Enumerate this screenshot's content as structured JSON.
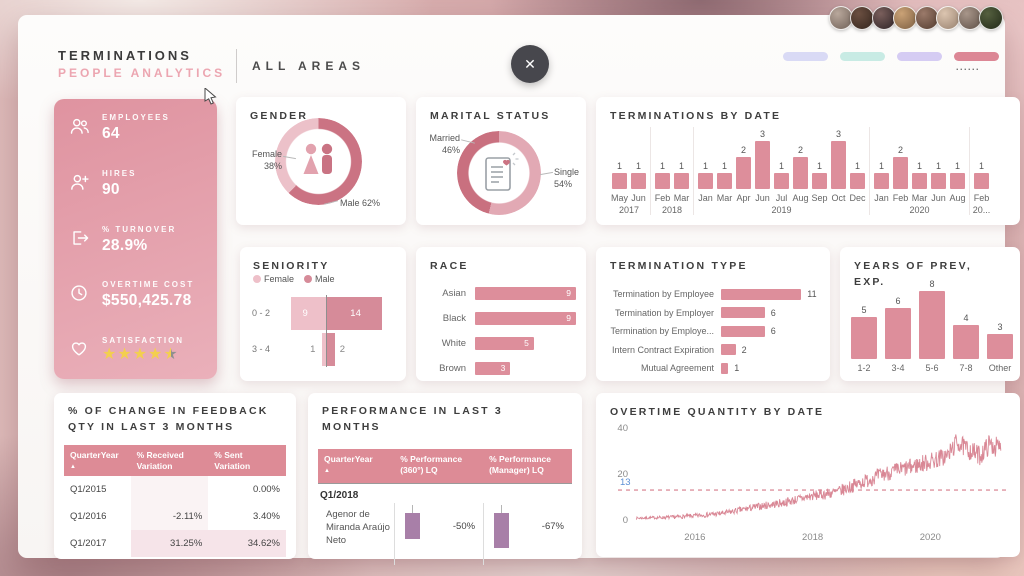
{
  "header": {
    "title": "TERMINATIONS",
    "subtitle": "PEOPLE ANALYTICS",
    "area_label": "ALL AREAS",
    "close_label": "✕",
    "active_dots": "......",
    "avatars": [
      [
        "#b9a89c",
        "#6f6057"
      ],
      [
        "#6b4f41",
        "#35261e"
      ],
      [
        "#7a5f5c",
        "#2e2326"
      ],
      [
        "#caa276",
        "#7d5f42"
      ],
      [
        "#9b7a6a",
        "#533c2f"
      ],
      [
        "#dcc5b0",
        "#97816f"
      ],
      [
        "#a8968a",
        "#5f5047"
      ],
      [
        "#55603f",
        "#222a18"
      ]
    ],
    "pills": [
      {
        "color": "#d9daf5",
        "active": false
      },
      {
        "color": "#c8ebe4",
        "active": false
      },
      {
        "color": "#d5ccf3",
        "active": false
      },
      {
        "color": "#dc8795",
        "active": true
      }
    ]
  },
  "colors": {
    "accent_pink": "#dd8e9b",
    "star_on": "#f3cf4e",
    "star_off": "#8f8f8f",
    "table_header": "#dd8b96"
  },
  "kpi": {
    "items": [
      {
        "label": "EMPLOYEES",
        "value": "64",
        "icon": "people-icon"
      },
      {
        "label": "HIRES",
        "value": "90",
        "icon": "person-add-icon"
      },
      {
        "label": "% TURNOVER",
        "value": "28.9%",
        "icon": "exit-icon"
      },
      {
        "label": "OVERTIME COST",
        "value": "$550,425.78",
        "icon": "clock-icon"
      },
      {
        "label": "SATISFACTION",
        "stars": 4.5,
        "icon": "heart-icon"
      }
    ]
  },
  "cards": {
    "gender": {
      "title": "GENDER"
    },
    "marital": {
      "title": "MARITAL STATUS"
    },
    "terminations": {
      "title": "TERMINATIONS BY DATE"
    },
    "seniority": {
      "title": "SENIORITY"
    },
    "race": {
      "title": "RACE"
    },
    "termination_type": {
      "title": "TERMINATION TYPE"
    },
    "years": {
      "title": "YEARS OF PREV, EXP."
    },
    "feedback": {
      "title_lines": [
        "% OF CHANGE IN FEEDBACK",
        "QTY IN LAST 3 MONTHS"
      ]
    },
    "performance": {
      "title_lines": [
        "PERFORMANCE IN LAST 3",
        "MONTHS"
      ]
    },
    "overtime": {
      "title": "OVERTIME QUANTITY BY DATE"
    }
  },
  "chart_data": [
    {
      "id": "gender",
      "type": "pie",
      "title": "GENDER",
      "slices": [
        {
          "label": "Female",
          "value": 38,
          "color": "#ecc1c9"
        },
        {
          "label": "Male",
          "value": 62,
          "color": "#cb7383"
        }
      ],
      "draw_order": [
        1,
        0
      ],
      "labels": [
        {
          "lines": [
            "Female",
            "38%"
          ]
        },
        {
          "lines": [
            "Male 62%"
          ]
        }
      ]
    },
    {
      "id": "marital",
      "type": "pie",
      "title": "MARITAL STATUS",
      "slices": [
        {
          "label": "Married",
          "value": 46,
          "color": "#c9707f"
        },
        {
          "label": "Single",
          "value": 54,
          "color": "#e2a9b4"
        }
      ],
      "draw_order": [
        1,
        0
      ],
      "labels": [
        {
          "lines": [
            "Married",
            "46%"
          ]
        },
        {
          "lines": [
            "Single",
            "54%"
          ]
        }
      ]
    },
    {
      "id": "terminations_by_date",
      "type": "bar",
      "title": "TERMINATIONS BY DATE",
      "ymax": 3,
      "groups": [
        {
          "year": "2017",
          "months": [
            "May",
            "Jun"
          ],
          "values": [
            1,
            1
          ]
        },
        {
          "year": "2018",
          "months": [
            "Feb",
            "Mar"
          ],
          "values": [
            1,
            1
          ]
        },
        {
          "year": "2019",
          "months": [
            "Jan",
            "Mar",
            "Apr",
            "Jun",
            "Jul",
            "Aug",
            "Sep",
            "Oct",
            "Dec"
          ],
          "values": [
            1,
            1,
            2,
            3,
            1,
            2,
            1,
            3,
            1
          ]
        },
        {
          "year": "2020",
          "months": [
            "Jan",
            "Feb",
            "Mar",
            "Jun",
            "Aug"
          ],
          "values": [
            1,
            2,
            1,
            1,
            1
          ]
        },
        {
          "year": "20...",
          "months": [
            "Feb"
          ],
          "values": [
            1
          ]
        }
      ]
    },
    {
      "id": "seniority",
      "type": "tornado",
      "title": "SENIORITY",
      "categories": [
        "0 - 2",
        "3 - 4"
      ],
      "series": [
        {
          "name": "Female",
          "color": "#eec0c9",
          "values": [
            9,
            1
          ]
        },
        {
          "name": "Male",
          "color": "#d68b99",
          "values": [
            14,
            2
          ]
        }
      ]
    },
    {
      "id": "race",
      "type": "bar_h",
      "title": "RACE",
      "categories": [
        "Asian",
        "Black",
        "White",
        "Brown"
      ],
      "values": [
        9,
        9,
        5,
        3
      ]
    },
    {
      "id": "termination_type",
      "type": "bar_h",
      "title": "TERMINATION TYPE",
      "categories": [
        "Termination by Employee",
        "Termination by Employer",
        "Termination by Employe...",
        "Intern Contract Expiration",
        "Mutual Agreement"
      ],
      "values": [
        11,
        6,
        6,
        2,
        1
      ]
    },
    {
      "id": "years_prev_exp",
      "type": "bar",
      "title": "YEARS OF PREV, EXP.",
      "categories": [
        "1-2",
        "3-4",
        "5-6",
        "7-8",
        "Other"
      ],
      "values": [
        5,
        6,
        8,
        4,
        3
      ]
    },
    {
      "id": "feedback_table",
      "type": "table",
      "title": "% OF CHANGE IN FEEDBACK QTY IN LAST 3 MONTHS",
      "columns": [
        "QuarterYear",
        "% Received Variation",
        "% Sent Variation"
      ],
      "rows": [
        [
          "Q1/2015",
          "",
          "0.00%"
        ],
        [
          "Q1/2016",
          "-2.11%",
          "3.40%"
        ],
        [
          "Q1/2017",
          "31.25%",
          "34.62%"
        ]
      ],
      "highlighted_row": 2,
      "sort_icon": "▲"
    },
    {
      "id": "performance_table",
      "type": "table",
      "title": "PERFORMANCE IN LAST 3 MONTHS",
      "columns": [
        "QuarterYear",
        "% Performance (360°) LQ",
        "% Performance (Manager) LQ"
      ],
      "group_row": "Q1/2018",
      "rows": [
        {
          "name": "Agenor de Miranda Araújo Neto",
          "values": [
            "-50%",
            "-67%"
          ],
          "bar_fractions": [
            0.5,
            0.67
          ]
        }
      ],
      "bar_color": "#a87fa8",
      "sort_icon": "▲"
    },
    {
      "id": "overtime",
      "type": "line",
      "title": "OVERTIME QUANTITY BY DATE",
      "ylim": [
        0,
        40
      ],
      "yticks": [
        0,
        20,
        40
      ],
      "xticks": [
        2016,
        2018,
        2020
      ],
      "ref_line": {
        "value": 13,
        "label": "13",
        "label_color": "#5b8fd4",
        "line_color": "#e2a4ae"
      },
      "line_color": "#d98795",
      "x_range": [
        2015.0,
        2021.2
      ],
      "trend": [
        [
          2015.0,
          0.8
        ],
        [
          2015.6,
          1.2
        ],
        [
          2016.0,
          1.8
        ],
        [
          2016.5,
          3.0
        ],
        [
          2017.0,
          5.5
        ],
        [
          2017.5,
          7.5
        ],
        [
          2018.0,
          10.5
        ],
        [
          2018.4,
          12
        ],
        [
          2018.8,
          16
        ],
        [
          2019.2,
          20
        ],
        [
          2019.6,
          22.5
        ],
        [
          2020.0,
          25.5
        ],
        [
          2020.3,
          28
        ],
        [
          2020.45,
          34
        ],
        [
          2020.6,
          31
        ],
        [
          2020.85,
          28
        ],
        [
          2021.0,
          33
        ],
        [
          2021.2,
          31
        ]
      ],
      "noise": [
        [
          2015,
          0.5
        ],
        [
          2016.5,
          1.2
        ],
        [
          2018,
          2.2
        ],
        [
          2019,
          3.2
        ],
        [
          2020,
          4
        ],
        [
          2021.2,
          4.5
        ]
      ]
    }
  ]
}
